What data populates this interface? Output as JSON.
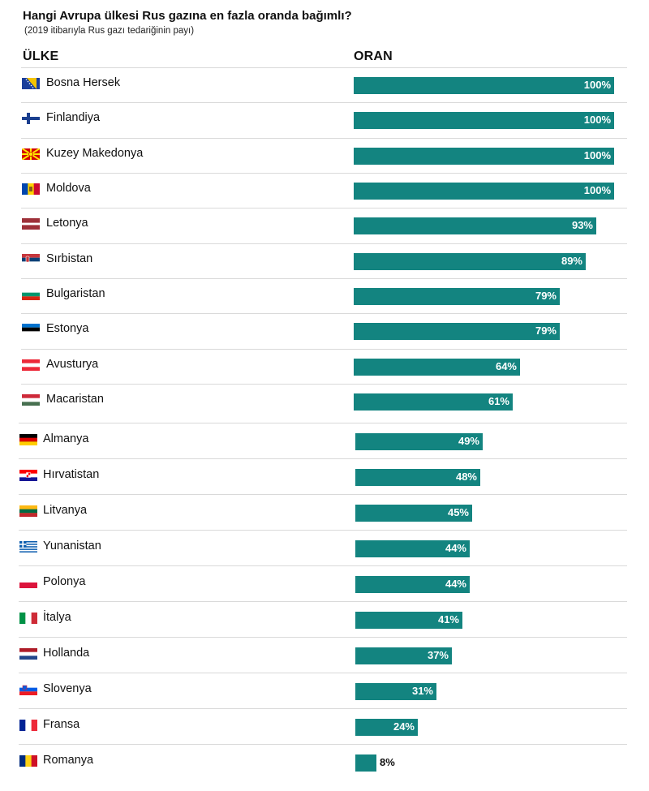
{
  "chart_data": {
    "type": "bar",
    "orientation": "horizontal",
    "title": "Hangi Avrupa ülkesi Rus gazına en fazla oranda bağımlı?",
    "subtitle": "(2019 itibarıyla Rus gazı tedariğinin payı)",
    "column_headers": {
      "country": "ÜLKE",
      "rate": "ORAN"
    },
    "unit": "%",
    "categories": [
      "Bosna Hersek",
      "Finlandiya",
      "Kuzey Makedonya",
      "Moldova",
      "Letonya",
      "Sırbistan",
      "Bulgaristan",
      "Estonya",
      "Avusturya",
      "Macaristan",
      "Almanya",
      "Hırvatistan",
      "Litvanya",
      "Yunanistan",
      "Polonya",
      "İtalya",
      "Hollanda",
      "Slovenya",
      "Fransa",
      "Romanya"
    ],
    "values": [
      100,
      100,
      100,
      100,
      93,
      89,
      79,
      79,
      64,
      61,
      49,
      48,
      45,
      44,
      44,
      41,
      37,
      31,
      24,
      8
    ],
    "value_labels": [
      "100%",
      "100%",
      "100%",
      "100%",
      "93%",
      "89%",
      "79%",
      "79%",
      "64%",
      "61%",
      "49%",
      "48%",
      "45%",
      "44%",
      "44%",
      "41%",
      "37%",
      "31%",
      "24%",
      "8%"
    ],
    "flags": [
      "bosnia-flag-icon",
      "finland-flag-icon",
      "north-macedonia-flag-icon",
      "moldova-flag-icon",
      "latvia-flag-icon",
      "serbia-flag-icon",
      "bulgaria-flag-icon",
      "estonia-flag-icon",
      "austria-flag-icon",
      "hungary-flag-icon",
      "germany-flag-icon",
      "croatia-flag-icon",
      "lithuania-flag-icon",
      "greece-flag-icon",
      "poland-flag-icon",
      "italy-flag-icon",
      "netherlands-flag-icon",
      "slovenia-flag-icon",
      "france-flag-icon",
      "romania-flag-icon"
    ],
    "xlim": [
      0,
      100
    ],
    "grid": false,
    "legend": "none",
    "bar_color": "#138480"
  }
}
